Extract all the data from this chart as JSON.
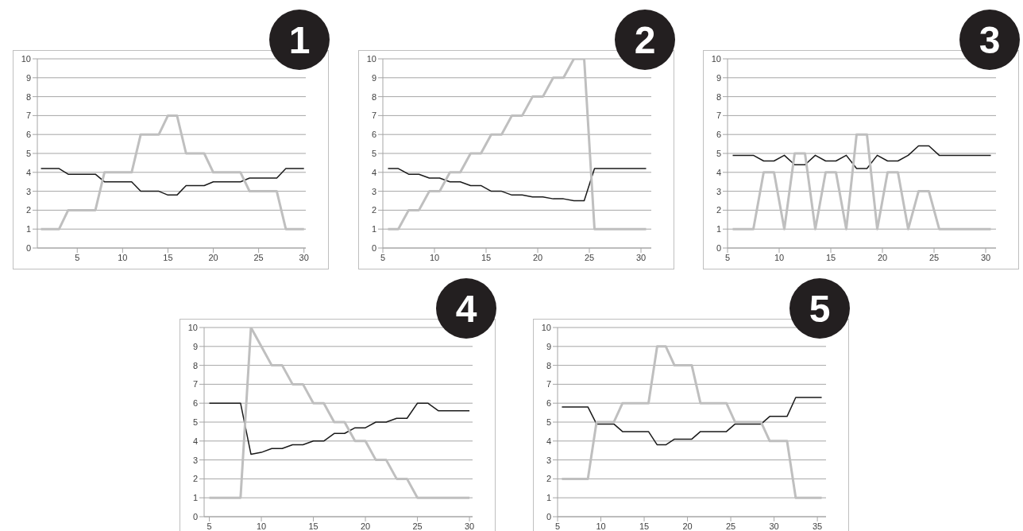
{
  "chart_data": [
    {
      "type": "line",
      "title": "1",
      "x": [
        1,
        2,
        3,
        4,
        5,
        6,
        7,
        8,
        9,
        10,
        11,
        12,
        13,
        14,
        15,
        16,
        17,
        18,
        19,
        20,
        21,
        22,
        23,
        24,
        25,
        26,
        27,
        28,
        29,
        30
      ],
      "xlim": [
        0.6,
        30.2
      ],
      "xticks": [
        5,
        10,
        15,
        20,
        25,
        30
      ],
      "ylim": [
        0,
        10
      ],
      "yticks": [
        0,
        1,
        2,
        3,
        4,
        5,
        6,
        7,
        8,
        9,
        10
      ],
      "grid": "y",
      "marker": "none",
      "series": [
        {
          "color": "#1a1a1a",
          "values": [
            4.2,
            4.2,
            4.2,
            3.9,
            3.9,
            3.9,
            3.9,
            3.5,
            3.5,
            3.5,
            3.5,
            3.0,
            3.0,
            3.0,
            2.8,
            2.8,
            3.3,
            3.3,
            3.3,
            3.5,
            3.5,
            3.5,
            3.5,
            3.7,
            3.7,
            3.7,
            3.7,
            4.2,
            4.2,
            4.2
          ]
        },
        {
          "color": "#bfbfbf",
          "values": [
            1,
            1,
            1,
            2,
            2,
            2,
            2,
            4,
            4,
            4,
            4,
            6,
            6,
            6,
            7,
            7,
            5,
            5,
            5,
            4,
            4,
            4,
            4,
            3,
            3,
            3,
            3,
            1,
            1,
            1
          ]
        }
      ]
    },
    {
      "type": "line",
      "title": "2",
      "x": [
        5.5,
        6.5,
        7.5,
        8.5,
        9.5,
        10.5,
        11.5,
        12.5,
        13.5,
        14.5,
        15.5,
        16.5,
        17.5,
        18.5,
        19.5,
        20.5,
        21.5,
        22.5,
        23.5,
        24.5,
        25.5,
        26.5,
        27.5,
        28.5,
        29.5,
        30.5
      ],
      "xlim": [
        5,
        31
      ],
      "xticks": [
        5,
        10,
        15,
        20,
        25,
        30
      ],
      "ylim": [
        0,
        10
      ],
      "yticks": [
        0,
        1,
        2,
        3,
        4,
        5,
        6,
        7,
        8,
        9,
        10
      ],
      "grid": "y",
      "marker": "none",
      "series": [
        {
          "color": "#1a1a1a",
          "values": [
            4.2,
            4.2,
            3.9,
            3.9,
            3.7,
            3.7,
            3.5,
            3.5,
            3.3,
            3.3,
            3.0,
            3.0,
            2.8,
            2.8,
            2.7,
            2.7,
            2.6,
            2.6,
            2.5,
            2.5,
            4.2,
            4.2,
            4.2,
            4.2,
            4.2,
            4.2
          ]
        },
        {
          "color": "#bfbfbf",
          "values": [
            1,
            1,
            2,
            2,
            3,
            3,
            4,
            4,
            5,
            5,
            6,
            6,
            7,
            7,
            8,
            8,
            9,
            9,
            10,
            10,
            1,
            1,
            1,
            1,
            1,
            1
          ]
        }
      ]
    },
    {
      "type": "line",
      "title": "3",
      "x": [
        5.5,
        6.5,
        7.5,
        8.5,
        9.5,
        10.5,
        11.5,
        12.5,
        13.5,
        14.5,
        15.5,
        16.5,
        17.5,
        18.5,
        19.5,
        20.5,
        21.5,
        22.5,
        23.5,
        24.5,
        25.5,
        26.5,
        27.5,
        28.5,
        29.5,
        30.5
      ],
      "xlim": [
        5,
        31
      ],
      "xticks": [
        5,
        10,
        15,
        20,
        25,
        30
      ],
      "ylim": [
        0,
        10
      ],
      "yticks": [
        0,
        1,
        2,
        3,
        4,
        5,
        6,
        7,
        8,
        9,
        10
      ],
      "grid": "y",
      "marker": "none",
      "series": [
        {
          "color": "#1a1a1a",
          "values": [
            4.9,
            4.9,
            4.9,
            4.6,
            4.6,
            4.9,
            4.4,
            4.4,
            4.9,
            4.6,
            4.6,
            4.9,
            4.2,
            4.2,
            4.9,
            4.6,
            4.6,
            4.9,
            5.4,
            5.4,
            4.9,
            4.9,
            4.9,
            4.9,
            4.9,
            4.9
          ]
        },
        {
          "color": "#bfbfbf",
          "values": [
            1,
            1,
            1,
            4,
            4,
            1,
            5,
            5,
            1,
            4,
            4,
            1,
            6,
            6,
            1,
            4,
            4,
            1,
            3,
            3,
            1,
            1,
            1,
            1,
            1,
            1
          ]
        }
      ]
    },
    {
      "type": "line",
      "title": "4",
      "x": [
        5,
        6,
        7,
        8,
        9,
        10,
        11,
        12,
        13,
        14,
        15,
        16,
        17,
        18,
        19,
        20,
        21,
        22,
        23,
        24,
        25,
        26,
        27,
        28,
        29,
        30
      ],
      "xlim": [
        4.5,
        30.3
      ],
      "xticks": [
        5,
        10,
        15,
        20,
        25,
        30
      ],
      "ylim": [
        0,
        10
      ],
      "yticks": [
        0,
        1,
        2,
        3,
        4,
        5,
        6,
        7,
        8,
        9,
        10
      ],
      "grid": "y",
      "marker": "none",
      "series": [
        {
          "color": "#1a1a1a",
          "values": [
            6.0,
            6.0,
            6.0,
            6.0,
            3.3,
            3.4,
            3.6,
            3.6,
            3.8,
            3.8,
            4.0,
            4.0,
            4.4,
            4.4,
            4.7,
            4.7,
            5.0,
            5.0,
            5.2,
            5.2,
            6.0,
            6.0,
            5.6,
            5.6,
            5.6,
            5.6
          ]
        },
        {
          "color": "#bfbfbf",
          "values": [
            1,
            1,
            1,
            1,
            10,
            9,
            8,
            8,
            7,
            7,
            6,
            6,
            5,
            5,
            4,
            4,
            3,
            3,
            2,
            2,
            1,
            1,
            1,
            1,
            1,
            1
          ]
        }
      ]
    },
    {
      "type": "line",
      "title": "5",
      "x": [
        5.5,
        6.5,
        7.5,
        8.5,
        9.5,
        10.5,
        11.5,
        12.5,
        13.5,
        14.5,
        15.5,
        16.5,
        17.5,
        18.5,
        19.5,
        20.5,
        21.5,
        22.5,
        23.5,
        24.5,
        25.5,
        26.5,
        27.5,
        28.5,
        29.5,
        30.5,
        31.5,
        32.5,
        33.5,
        34.5,
        35.5
      ],
      "xlim": [
        5,
        36
      ],
      "xticks": [
        5,
        10,
        15,
        20,
        25,
        30,
        35
      ],
      "ylim": [
        0,
        10
      ],
      "yticks": [
        0,
        1,
        2,
        3,
        4,
        5,
        6,
        7,
        8,
        9,
        10
      ],
      "grid": "y",
      "marker": "none",
      "series": [
        {
          "color": "#1a1a1a",
          "values": [
            5.8,
            5.8,
            5.8,
            5.8,
            4.9,
            4.9,
            4.9,
            4.5,
            4.5,
            4.5,
            4.5,
            3.8,
            3.8,
            4.1,
            4.1,
            4.1,
            4.5,
            4.5,
            4.5,
            4.5,
            4.9,
            4.9,
            4.9,
            4.9,
            5.3,
            5.3,
            5.3,
            6.3,
            6.3,
            6.3,
            6.3
          ]
        },
        {
          "color": "#bfbfbf",
          "values": [
            2,
            2,
            2,
            2,
            5,
            5,
            5,
            6,
            6,
            6,
            6,
            9,
            9,
            8,
            8,
            8,
            6,
            6,
            6,
            6,
            5,
            5,
            5,
            5,
            4,
            4,
            4,
            1,
            1,
            1,
            1
          ]
        }
      ]
    }
  ]
}
